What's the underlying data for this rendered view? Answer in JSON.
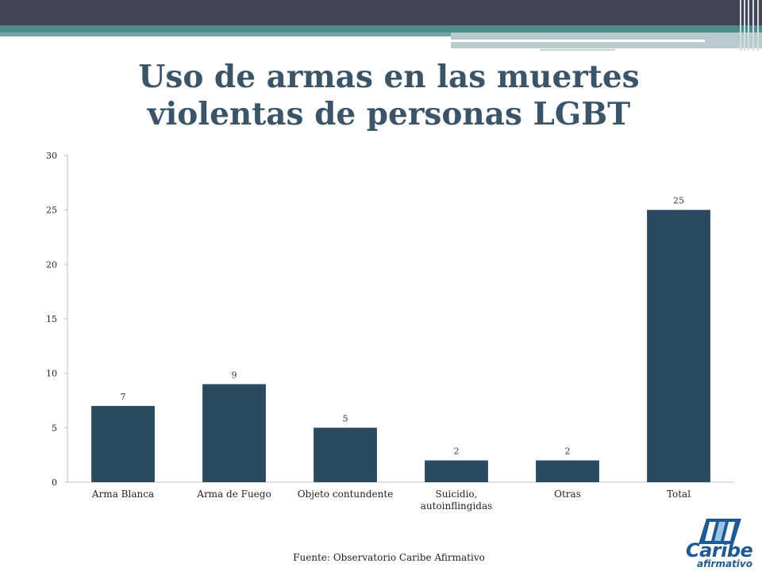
{
  "slide": {
    "title_line1": "Uso de armas en las muertes",
    "title_line2": "violentas de personas LGBT",
    "source": "Fuente: Observatorio Caribe Afirmativo"
  },
  "logo": {
    "word1": "Caribe",
    "word2": "afirmativo",
    "colors": {
      "primary": "#1f5a93"
    }
  },
  "theme": {
    "bar_color": "#2c4a5f",
    "title_color": "#3b5468",
    "header_dark": "#434556",
    "header_teal": "#4e8b8d"
  },
  "chart_data": {
    "type": "bar",
    "title": "",
    "xlabel": "",
    "ylabel": "",
    "categories": [
      [
        "Arma Blanca"
      ],
      [
        "Arma de Fuego"
      ],
      [
        "Objeto contundente"
      ],
      [
        "Suicidio,",
        "autoinflingidas"
      ],
      [
        "Otras"
      ],
      [
        "Total"
      ]
    ],
    "values": [
      7,
      9,
      5,
      2,
      2,
      25
    ],
    "ylim": [
      0,
      30
    ],
    "yticks": [
      0,
      5,
      10,
      15,
      20,
      25,
      30
    ],
    "grid": false,
    "data_labels": true
  }
}
